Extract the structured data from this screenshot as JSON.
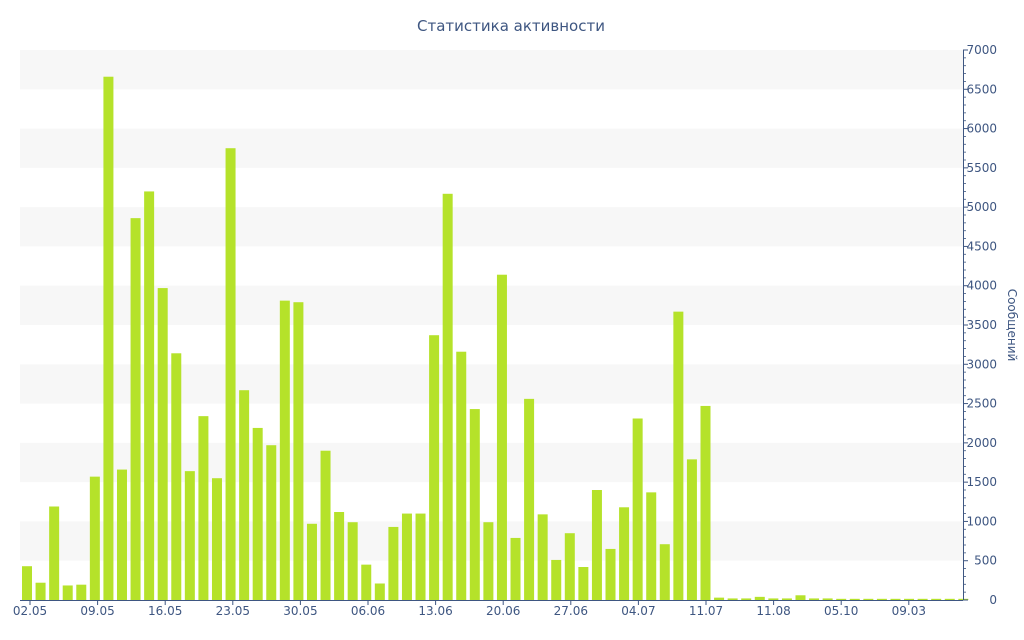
{
  "chart_data": {
    "type": "bar",
    "title": "Статистика активности",
    "ylabel": "Сообщений",
    "ylim": [
      0,
      7000
    ],
    "y_ticks": [
      "0",
      "500",
      "1000",
      "1500",
      "2000",
      "2500",
      "3000",
      "3500",
      "4000",
      "4500",
      "5000",
      "5500",
      "6000",
      "6500",
      "7000"
    ],
    "x_ticks": [
      "02.05",
      "09.05",
      "16.05",
      "23.05",
      "30.05",
      "06.06",
      "13.06",
      "20.06",
      "27.06",
      "04.07",
      "11.07",
      "11.08",
      "05.10",
      "09.03"
    ],
    "y_axis_side": "right",
    "grid": "alternating horizontal bands",
    "values": [
      430,
      220,
      1190,
      185,
      195,
      1570,
      6660,
      1660,
      4860,
      5200,
      3970,
      3140,
      1640,
      2340,
      1550,
      5750,
      2670,
      2190,
      1970,
      3810,
      3790,
      970,
      1900,
      1120,
      990,
      450,
      210,
      930,
      1100,
      1100,
      3370,
      5170,
      3160,
      2430,
      990,
      4140,
      790,
      2560,
      1090,
      510,
      850,
      420,
      1400,
      650,
      1180,
      2310,
      1370,
      710,
      3670,
      1790,
      2470,
      30,
      20,
      20,
      40,
      20,
      20,
      60,
      20,
      20,
      15,
      15,
      15,
      15,
      15,
      15,
      15,
      15,
      15,
      15
    ],
    "colors": {
      "bar": "#b5e22a",
      "text": "#3e5681",
      "band": "#f7f7f7",
      "axis": "#3e5681"
    }
  }
}
